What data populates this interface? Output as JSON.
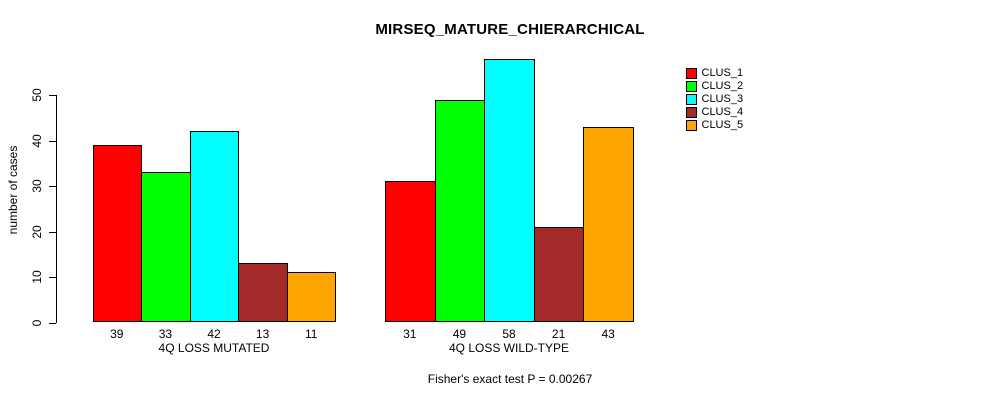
{
  "chart_data": {
    "type": "bar",
    "title": "MIRSEQ_MATURE_CHIERARCHICAL",
    "ylabel": "number of cases",
    "xlabel": "",
    "categories": [
      "4Q LOSS MUTATED",
      "4Q LOSS WILD-TYPE"
    ],
    "series": [
      {
        "name": "CLUS_1",
        "color": "#ff0000",
        "values": [
          39,
          31
        ]
      },
      {
        "name": "CLUS_2",
        "color": "#00ff00",
        "values": [
          33,
          49
        ]
      },
      {
        "name": "CLUS_3",
        "color": "#00ffff",
        "values": [
          42,
          58
        ]
      },
      {
        "name": "CLUS_4",
        "color": "#a52a2a",
        "values": [
          13,
          21
        ]
      },
      {
        "name": "CLUS_5",
        "color": "#ffa500",
        "values": [
          11,
          43
        ]
      }
    ],
    "yticks": [
      0,
      10,
      20,
      30,
      40,
      50
    ],
    "ylim": [
      0,
      58
    ],
    "grid": false,
    "bar_borders": true,
    "value_labels_under_bars": true,
    "legend_position": "right-outside",
    "annotation": "Fisher's exact test P = 0.00267",
    "background": "#ffffff",
    "text_color": "#000000"
  }
}
